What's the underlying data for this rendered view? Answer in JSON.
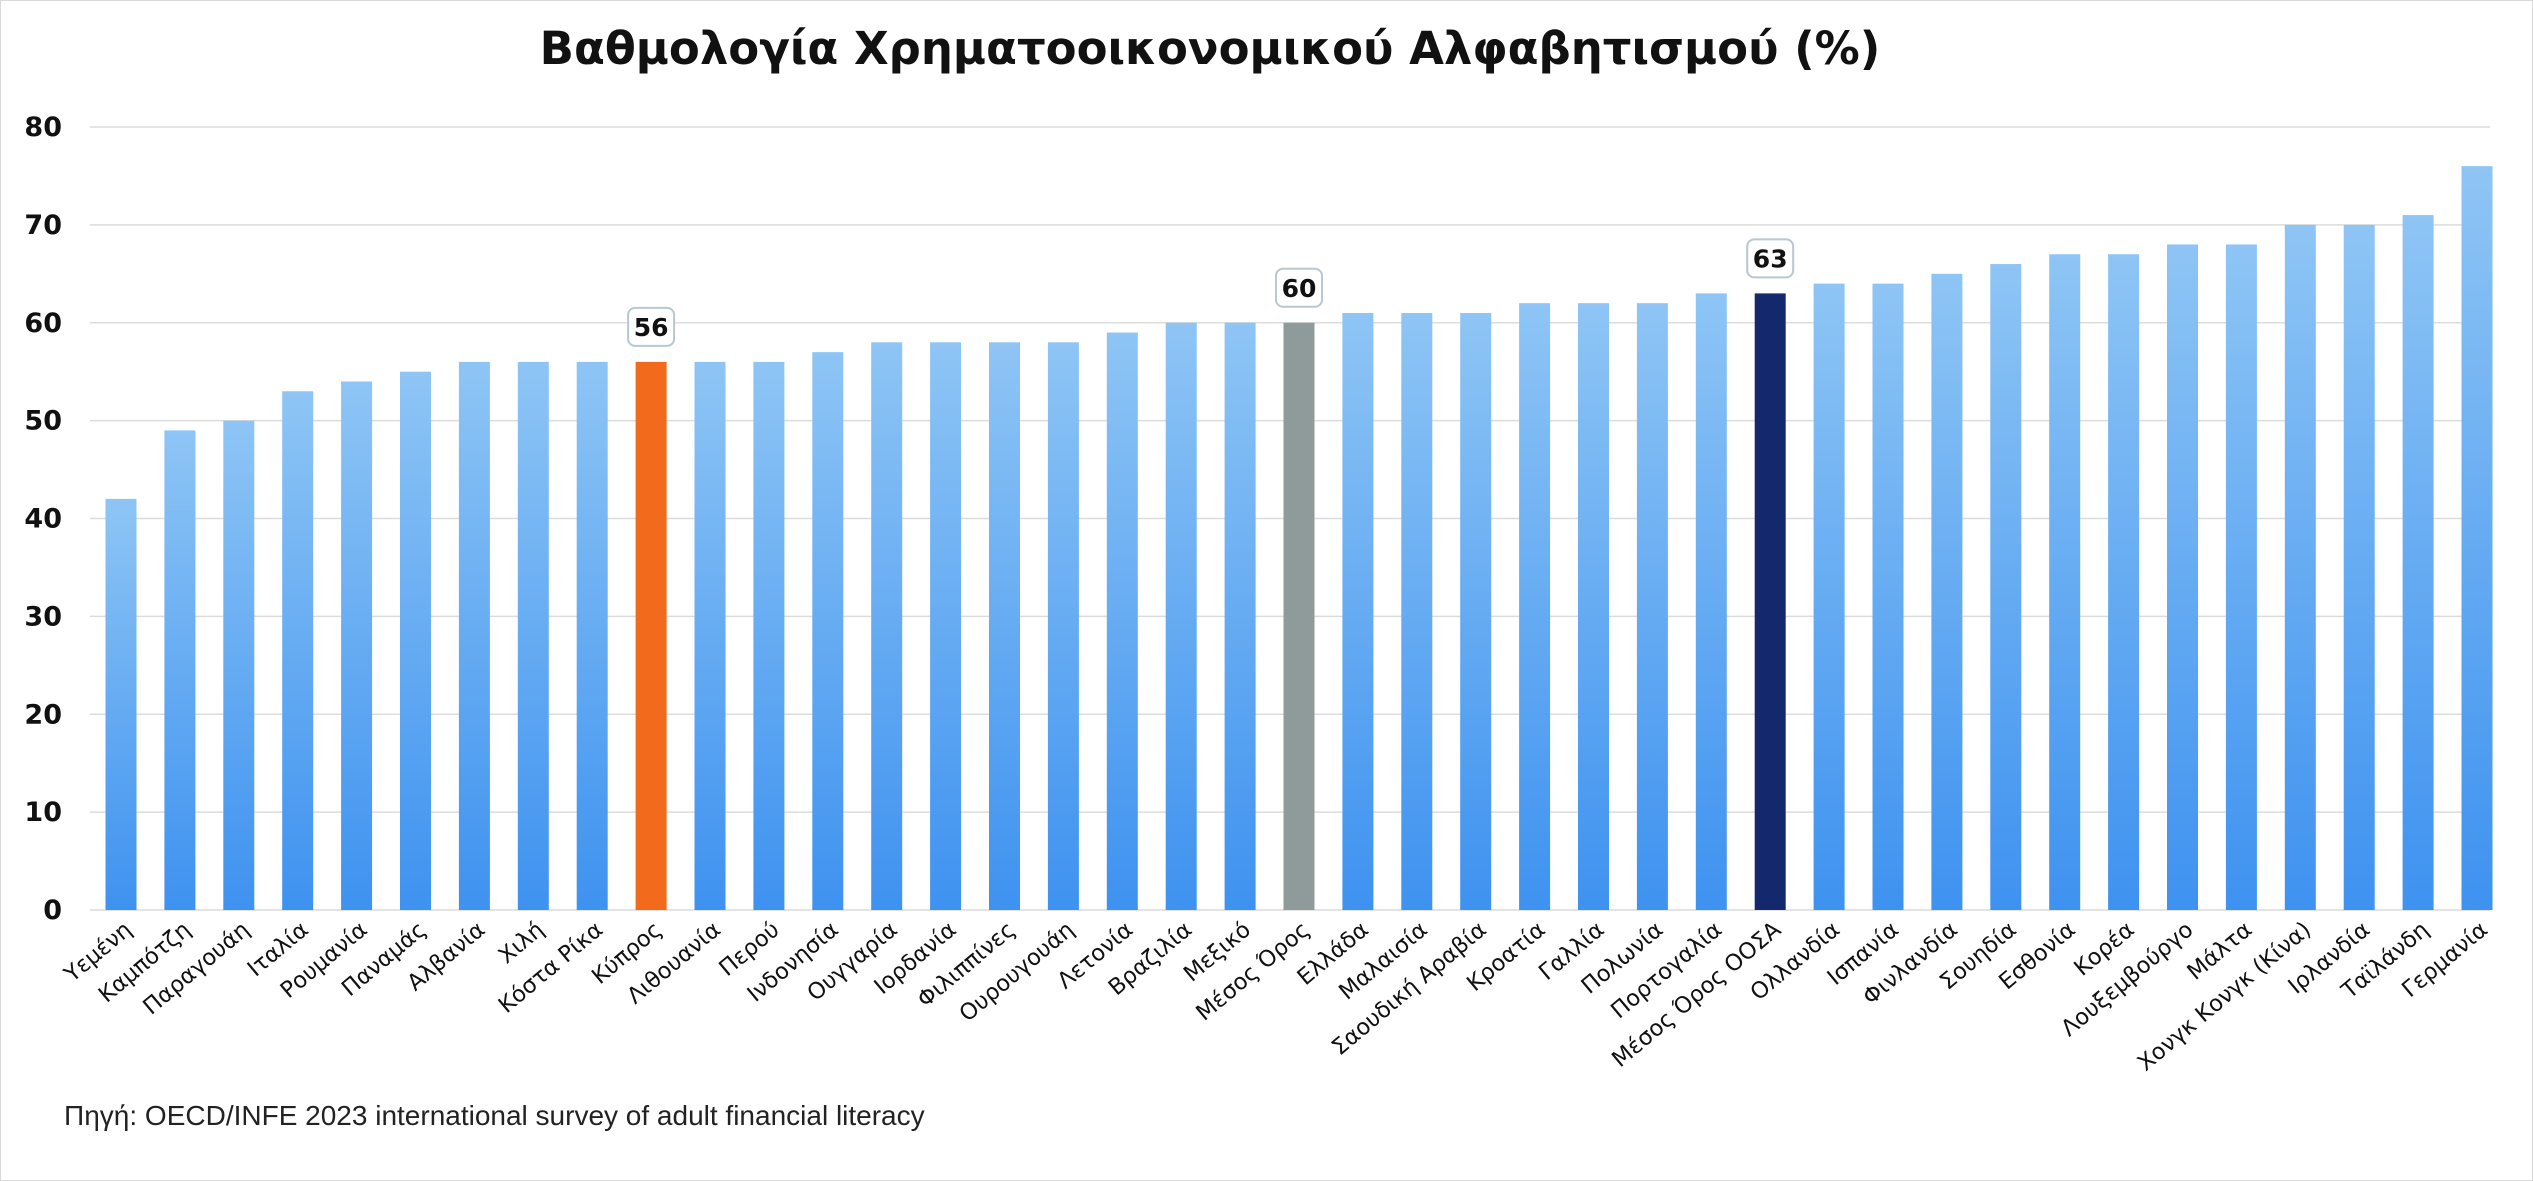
{
  "chart_data": {
    "type": "bar",
    "title": "Βαθμολογία Χρηματοοικονομικού Αλφαβητισμού (%)",
    "xlabel": "",
    "ylabel": "",
    "ylim": [
      0,
      80
    ],
    "yticks": [
      0,
      10,
      20,
      30,
      40,
      50,
      60,
      70,
      80
    ],
    "grid": true,
    "legend": "none",
    "categories": [
      "Υεμένη",
      "Καμπότζη",
      "Παραγουάη",
      "Ιταλία",
      "Ρουμανία",
      "Παναμάς",
      "Αλβανία",
      "Χιλή",
      "Κόστα Ρίκα",
      "Κύπρος",
      "Λιθουανία",
      "Περού",
      "Ινδονησία",
      "Ουγγαρία",
      "Ιορδανία",
      "Φιλιππίνες",
      "Ουρουγουάη",
      "Λετονία",
      "Βραζιλία",
      "Μεξικό",
      "Μέσος Όρος",
      "Ελλάδα",
      "Μαλαισία",
      "Σαουδική Αραβία",
      "Κροατία",
      "Γαλλία",
      "Πολωνία",
      "Πορτογαλία",
      "Μέσος Όρος ΟΟΣΑ",
      "Ολλανδία",
      "Ισπανία",
      "Φινλανδία",
      "Σουηδία",
      "Εσθονία",
      "Κορέα",
      "Λουξεμβούργο",
      "Μάλτα",
      "Χονγκ Κονγκ (Κίνα)",
      "Ιρλανδία",
      "Ταϊλάνδη",
      "Γερμανία"
    ],
    "values": [
      42,
      49,
      50,
      53,
      54,
      55,
      56,
      56,
      56,
      56,
      56,
      56,
      57,
      58,
      58,
      58,
      58,
      59,
      60,
      60,
      60,
      61,
      61,
      61,
      62,
      62,
      62,
      63,
      63,
      64,
      64,
      65,
      66,
      67,
      67,
      68,
      68,
      70,
      70,
      71,
      76
    ],
    "highlights": [
      {
        "category": "Κύπρος",
        "value": 56,
        "label": "56",
        "color": "#f26b1d"
      },
      {
        "category": "Μέσος Όρος",
        "value": 60,
        "label": "60",
        "color": "#8f9a9b"
      },
      {
        "category": "Μέσος Όρος ΟΟΣΑ",
        "value": 63,
        "label": "63",
        "color": "#14286e"
      }
    ],
    "colors": {
      "bar_top": "#8ec5f5",
      "bar_bottom": "#3e92f0",
      "grid": "#dcdcdc",
      "label_box_border": "#b9c7cf"
    }
  },
  "source": "Πηγή: OECD/INFE 2023 international survey of adult financial literacy"
}
